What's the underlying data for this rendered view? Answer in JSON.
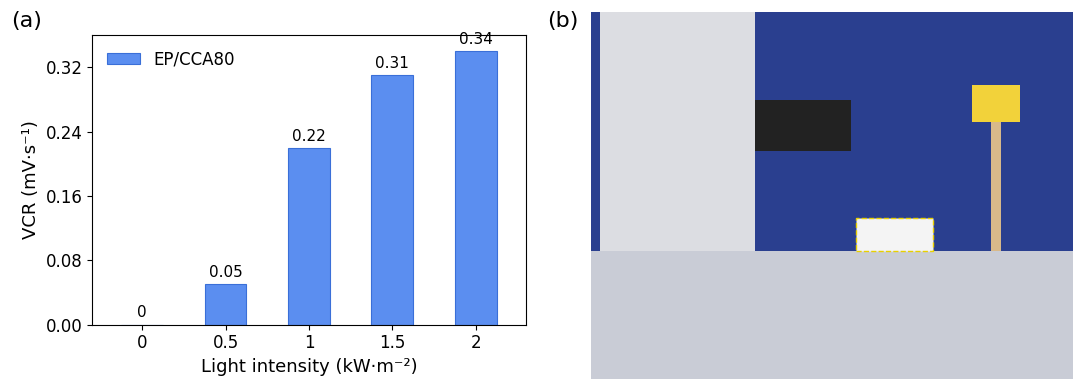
{
  "chart_data": [
    {
      "type": "bar",
      "title": "(a)",
      "categories": [
        "0",
        "0.5",
        "1",
        "1.5",
        "2"
      ],
      "series": [
        {
          "name": "EP/CCA80",
          "color": "#5b8ef0",
          "values": [
            0,
            0.05,
            0.22,
            0.31,
            0.34
          ]
        }
      ],
      "x_label": "Light intensity (kW·m⁻²)",
      "y_label": "VCR (mV·s⁻¹)",
      "ylim": [
        0,
        0.36
      ],
      "yticks": [
        {
          "value": 0,
          "label": "0.00"
        },
        {
          "value": 0.08,
          "label": "0.08"
        },
        {
          "value": 0.16,
          "label": "0.16"
        },
        {
          "value": 0.24,
          "label": "0.24"
        },
        {
          "value": 0.32,
          "label": "0.32"
        }
      ],
      "data_labels": true,
      "legend": "upper left",
      "grid": false
    },
    {
      "type": "image",
      "title": "(b)"
    }
  ]
}
